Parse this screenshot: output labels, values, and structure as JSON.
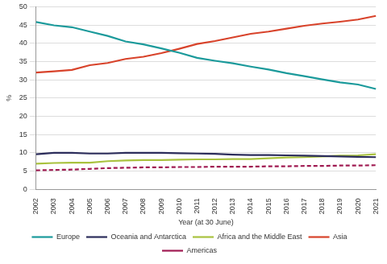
{
  "chart_data": {
    "type": "line",
    "x_label": "Year (at 30 June)",
    "y_label": "%",
    "categories": [
      "2002",
      "2003",
      "2004",
      "2005",
      "2006",
      "2007",
      "2008",
      "2009",
      "2010",
      "2011",
      "2012",
      "2013",
      "2014",
      "2015",
      "2016",
      "2017",
      "2018",
      "2019",
      "2020",
      "2021"
    ],
    "series": [
      {
        "name": "Europe",
        "color": "#1b9a9b",
        "line_style": "solid",
        "values": [
          45.8,
          44.9,
          44.4,
          43.2,
          42.0,
          40.5,
          39.7,
          38.6,
          37.4,
          36.0,
          35.2,
          34.5,
          33.6,
          32.8,
          31.8,
          31.0,
          30.1,
          29.3,
          28.7,
          27.5
        ]
      },
      {
        "name": "Oceania and Antarctica",
        "color": "#2c2d5b",
        "line_style": "solid",
        "values": [
          9.6,
          10.0,
          10.0,
          9.8,
          9.8,
          10.0,
          10.0,
          10.0,
          9.9,
          9.8,
          9.7,
          9.5,
          9.4,
          9.4,
          9.3,
          9.2,
          9.1,
          9.0,
          8.9,
          8.8
        ]
      },
      {
        "name": "Africa and the Middle East",
        "color": "#a9c23f",
        "line_style": "solid",
        "values": [
          7.0,
          7.2,
          7.3,
          7.3,
          7.7,
          7.9,
          8.0,
          8.0,
          8.1,
          8.2,
          8.2,
          8.3,
          8.3,
          8.5,
          8.7,
          8.8,
          9.0,
          9.2,
          9.3,
          9.6
        ]
      },
      {
        "name": "Asia",
        "color": "#d8432b",
        "line_style": "solid",
        "values": [
          32.0,
          32.3,
          32.7,
          34.0,
          34.6,
          35.7,
          36.3,
          37.3,
          38.5,
          39.8,
          40.6,
          41.6,
          42.6,
          43.2,
          44.0,
          44.8,
          45.4,
          45.9,
          46.5,
          47.5
        ]
      },
      {
        "name": "Americas",
        "color": "#a01b52",
        "line_style": "dashed",
        "values": [
          5.2,
          5.3,
          5.4,
          5.6,
          5.8,
          5.9,
          6.0,
          6.0,
          6.1,
          6.1,
          6.2,
          6.2,
          6.2,
          6.3,
          6.3,
          6.4,
          6.4,
          6.5,
          6.5,
          6.6
        ]
      }
    ],
    "ylim": [
      0,
      50
    ],
    "yticks": [
      0,
      5,
      10,
      15,
      20,
      25,
      30,
      35,
      40,
      45,
      50
    ],
    "grid": true,
    "legend": "bottom"
  }
}
